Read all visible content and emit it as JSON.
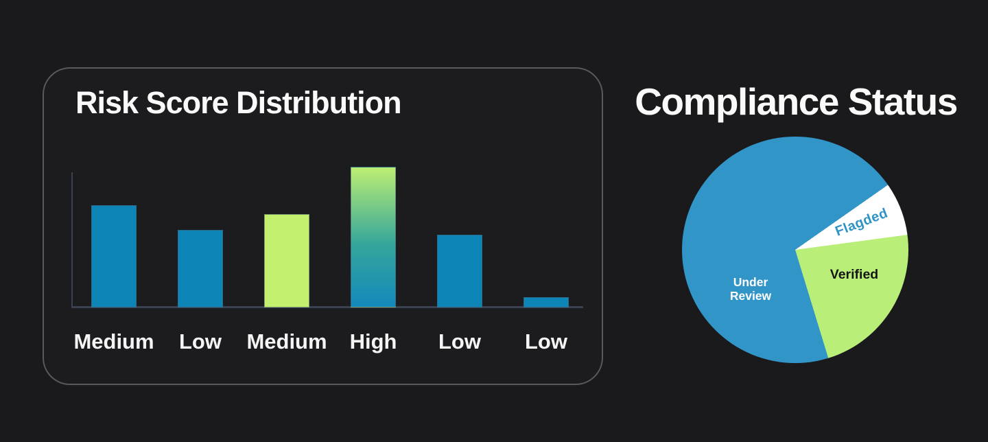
{
  "page": {
    "background": "#1a1a1c"
  },
  "chart_data": [
    {
      "type": "bar",
      "title": "Risk Score Distribution",
      "categories": [
        "Medium",
        "Low",
        "Medium",
        "High",
        "Low",
        "Low"
      ],
      "values": [
        72.7,
        55.1,
        66.3,
        100,
        51.7,
        7.3
      ],
      "value_scale": "percent of tallest bar (no numeric y-axis shown)",
      "bar_colors": [
        "blue",
        "blue",
        "lime",
        "gradient",
        "blue",
        "blue"
      ],
      "palette": {
        "blue": "#0d86b7",
        "lime": "#c3f06e",
        "gradient_top": "#bdee73",
        "gradient_bottom": "#1489bb",
        "axis": "#3a4150",
        "label_text": "#f5f5f5"
      },
      "grid": false,
      "legend": false
    },
    {
      "type": "pie",
      "title": "Compliance Status",
      "start_angle_deg_clockwise_from_top": 55,
      "slices": [
        {
          "label": "Flagded",
          "pct": 7.6,
          "color": "#ffffff",
          "label_color": "#2f93c6"
        },
        {
          "label": "Verified",
          "pct": 22.4,
          "color": "#b9ee79",
          "label_color": "#151515"
        },
        {
          "label": "Under Review",
          "pct": 70.0,
          "color": "#3295c7",
          "label_color": "#ffffff"
        }
      ],
      "legend": false,
      "labels_inside_slices": true
    }
  ]
}
